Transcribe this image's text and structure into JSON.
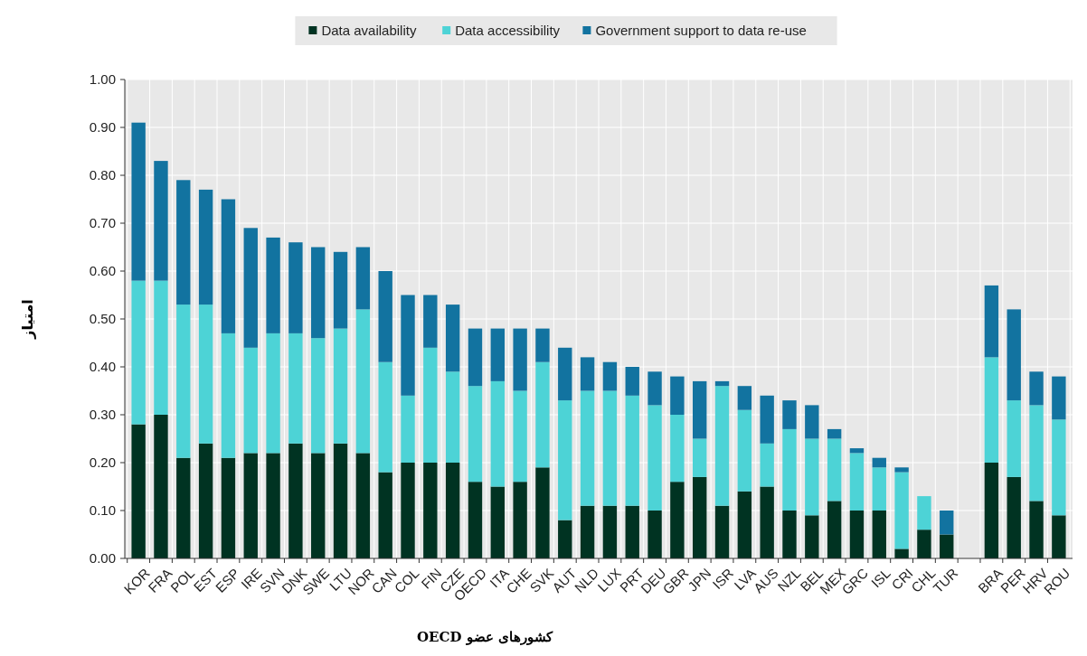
{
  "chart_data": {
    "type": "bar",
    "stacked": true,
    "xlabel": "کشورهای عضو OECD",
    "ylabel": "امتیاز",
    "categories": [
      "KOR",
      "FRA",
      "POL",
      "EST",
      "ESP",
      "IRE",
      "SVN",
      "DNK",
      "SWE",
      "LTU",
      "NOR",
      "CAN",
      "COL",
      "FIN",
      "CZE",
      "OECD",
      "ITA",
      "CHE",
      "SVK",
      "AUT",
      "NLD",
      "LUX",
      "PRT",
      "DEU",
      "GBR",
      "JPN",
      "ISR",
      "LVA",
      "AUS",
      "NZL",
      "BEL",
      "MEX",
      "GRC",
      "ISL",
      "CRI",
      "CHL",
      "TUR",
      null,
      "BRA",
      "PER",
      "HRV",
      "ROU"
    ],
    "series": [
      {
        "name": "Data availability",
        "color": "#003322",
        "values": [
          0.28,
          0.3,
          0.21,
          0.24,
          0.21,
          0.22,
          0.22,
          0.24,
          0.22,
          0.24,
          0.22,
          0.18,
          0.2,
          0.2,
          0.2,
          0.16,
          0.15,
          0.16,
          0.19,
          0.08,
          0.11,
          0.11,
          0.11,
          0.1,
          0.16,
          0.17,
          0.11,
          0.14,
          0.15,
          0.1,
          0.09,
          0.12,
          0.1,
          0.1,
          0.02,
          0.06,
          0.05,
          null,
          0.2,
          0.17,
          0.12,
          0.09
        ]
      },
      {
        "name": "Data accessibility",
        "color": "#4dd3d6",
        "values": [
          0.3,
          0.28,
          0.32,
          0.29,
          0.26,
          0.22,
          0.25,
          0.23,
          0.24,
          0.24,
          0.3,
          0.23,
          0.14,
          0.24,
          0.19,
          0.2,
          0.22,
          0.19,
          0.22,
          0.25,
          0.24,
          0.24,
          0.23,
          0.22,
          0.14,
          0.08,
          0.25,
          0.17,
          0.09,
          0.17,
          0.16,
          0.13,
          0.12,
          0.09,
          0.16,
          0.07,
          0,
          null,
          0.22,
          0.16,
          0.2,
          0.2
        ]
      },
      {
        "name": "Government support to data re-use",
        "color": "#1273a0",
        "values": [
          0.33,
          0.25,
          0.26,
          0.24,
          0.28,
          0.25,
          0.2,
          0.19,
          0.19,
          0.16,
          0.13,
          0.19,
          0.21,
          0.11,
          0.14,
          0.12,
          0.11,
          0.13,
          0.07,
          0.11,
          0.07,
          0.06,
          0.06,
          0.07,
          0.08,
          0.12,
          0.01,
          0.05,
          0.1,
          0.06,
          0.07,
          0.02,
          0.01,
          0.02,
          0.01,
          0,
          0.05,
          null,
          0.15,
          0.19,
          0.07,
          0.09
        ]
      }
    ],
    "ylim": [
      0,
      1
    ],
    "yticks": [
      {
        "value": 0,
        "label": "0.00"
      },
      {
        "value": 0.1,
        "label": "0.10"
      },
      {
        "value": 0.2,
        "label": "0.20"
      },
      {
        "value": 0.3,
        "label": "0.30"
      },
      {
        "value": 0.4,
        "label": "0.40"
      },
      {
        "value": 0.5,
        "label": "0.50"
      },
      {
        "value": 0.6,
        "label": "0.60"
      },
      {
        "value": 0.7,
        "label": "0.70"
      },
      {
        "value": 0.8,
        "label": "0.80"
      },
      {
        "value": 0.9,
        "label": "0.90"
      },
      {
        "value": 1,
        "label": "1.00"
      }
    ],
    "grid": true,
    "legend": "top"
  }
}
